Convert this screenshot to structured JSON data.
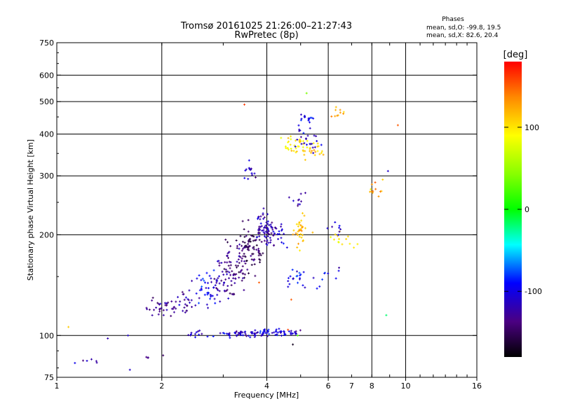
{
  "chart_data": {
    "type": "scatter",
    "title": "Tromsø 20161025 21:26:00–21:27:43",
    "subtitle": "RwPretec (8p)",
    "xlabel": "Frequency [MHz]",
    "ylabel": "Stationary phase Virtual Height [km]",
    "xscale": "log2",
    "yscale": "log",
    "xlim": [
      1,
      16
    ],
    "ylim": [
      75,
      750
    ],
    "xticks": [
      1,
      2,
      4,
      6,
      10,
      16
    ],
    "xtick_labels": [
      "1",
      "2",
      "4",
      "6",
      "10",
      "16"
    ],
    "xgrid": [
      2,
      4,
      6,
      8,
      10
    ],
    "xminor_labels": [
      {
        "x": 8,
        "label": "8"
      },
      {
        "x": 7,
        "label": "7"
      }
    ],
    "yticks": [
      75,
      100,
      200,
      300,
      400,
      500,
      600,
      750
    ],
    "ygrid": [
      100,
      200,
      300,
      400,
      500,
      600
    ],
    "grid": true,
    "stats": {
      "heading": "Phases",
      "line1": "mean, sd,O: -99.8, 19.5",
      "line2": "mean, sd,X:  82.6, 20.4"
    },
    "colorbar": {
      "label": "[deg]",
      "range": [
        -180,
        180
      ],
      "ticks": [
        100,
        0,
        -100
      ],
      "tick_labels": [
        "100",
        "0",
        "-100"
      ]
    },
    "clusters": [
      {
        "cx": 4.1,
        "cy": 102,
        "sx": 0.12,
        "sy": 0.012,
        "n": 60,
        "phase": -105
      },
      {
        "cx": 3.4,
        "cy": 101,
        "sx": 0.08,
        "sy": 0.012,
        "n": 40,
        "phase": -108
      },
      {
        "cx": 2.6,
        "cy": 101,
        "sx": 0.05,
        "sy": 0.012,
        "n": 14,
        "phase": -110
      },
      {
        "cx": 2.0,
        "cy": 120,
        "sx": 0.04,
        "sy": 0.03,
        "n": 30,
        "phase": -130
      },
      {
        "cx": 2.3,
        "cy": 126,
        "sx": 0.05,
        "sy": 0.04,
        "n": 30,
        "phase": -125
      },
      {
        "cx": 2.7,
        "cy": 135,
        "sx": 0.05,
        "sy": 0.06,
        "n": 40,
        "phase": -100
      },
      {
        "cx": 3.0,
        "cy": 145,
        "sx": 0.05,
        "sy": 0.07,
        "n": 45,
        "phase": -125
      },
      {
        "cx": 3.3,
        "cy": 165,
        "sx": 0.05,
        "sy": 0.09,
        "n": 70,
        "phase": -140
      },
      {
        "cx": 3.6,
        "cy": 185,
        "sx": 0.04,
        "sy": 0.08,
        "n": 70,
        "phase": -145
      },
      {
        "cx": 4.0,
        "cy": 205,
        "sx": 0.04,
        "sy": 0.06,
        "n": 60,
        "phase": -120
      },
      {
        "cx": 4.3,
        "cy": 200,
        "sx": 0.04,
        "sy": 0.04,
        "n": 25,
        "phase": -110
      },
      {
        "cx": 3.55,
        "cy": 310,
        "sx": 0.02,
        "sy": 0.025,
        "n": 14,
        "phase": -110
      },
      {
        "cx": 5.0,
        "cy": 205,
        "sx": 0.04,
        "sy": 0.06,
        "n": 35,
        "phase": 115
      },
      {
        "cx": 5.0,
        "cy": 148,
        "sx": 0.04,
        "sy": 0.03,
        "n": 20,
        "phase": -95
      },
      {
        "cx": 4.8,
        "cy": 370,
        "sx": 0.04,
        "sy": 0.03,
        "n": 30,
        "phase": 100
      },
      {
        "cx": 5.5,
        "cy": 360,
        "sx": 0.04,
        "sy": 0.03,
        "n": 25,
        "phase": 105
      },
      {
        "cx": 5.2,
        "cy": 380,
        "sx": 0.05,
        "sy": 0.06,
        "n": 25,
        "phase": -115
      },
      {
        "cx": 5.2,
        "cy": 445,
        "sx": 0.02,
        "sy": 0.02,
        "n": 15,
        "phase": -105
      },
      {
        "cx": 5.0,
        "cy": 255,
        "sx": 0.03,
        "sy": 0.03,
        "n": 10,
        "phase": -120
      },
      {
        "cx": 6.5,
        "cy": 190,
        "sx": 0.04,
        "sy": 0.04,
        "n": 14,
        "phase": 100
      },
      {
        "cx": 6.3,
        "cy": 210,
        "sx": 0.04,
        "sy": 0.04,
        "n": 8,
        "phase": -110
      },
      {
        "cx": 6.5,
        "cy": 455,
        "sx": 0.04,
        "sy": 0.02,
        "n": 10,
        "phase": 120
      },
      {
        "cx": 8.3,
        "cy": 275,
        "sx": 0.04,
        "sy": 0.03,
        "n": 12,
        "phase": 130
      },
      {
        "cx": 1.25,
        "cy": 84,
        "sx": 0.06,
        "sy": 0.01,
        "n": 6,
        "phase": -115
      },
      {
        "cx": 1.9,
        "cy": 86,
        "sx": 0.04,
        "sy": 0.01,
        "n": 4,
        "phase": -125
      },
      {
        "cx": 5.9,
        "cy": 150,
        "sx": 0.05,
        "sy": 0.04,
        "n": 10,
        "phase": -100
      }
    ],
    "points": [
      {
        "x": 5.2,
        "y": 530,
        "phase": 40
      },
      {
        "x": 3.45,
        "y": 490,
        "phase": 160
      },
      {
        "x": 9.5,
        "y": 425,
        "phase": 150
      },
      {
        "x": 8.9,
        "y": 310,
        "phase": -110
      },
      {
        "x": 8.8,
        "y": 115,
        "phase": -20
      },
      {
        "x": 1.08,
        "y": 106,
        "phase": 110
      },
      {
        "x": 1.6,
        "y": 100,
        "phase": -110
      },
      {
        "x": 1.4,
        "y": 98,
        "phase": -120
      },
      {
        "x": 1.62,
        "y": 79,
        "phase": -110
      },
      {
        "x": 4.9,
        "y": 100,
        "phase": 30
      },
      {
        "x": 4.6,
        "y": 104,
        "phase": 160
      },
      {
        "x": 4.75,
        "y": 94,
        "phase": -170
      },
      {
        "x": 3.8,
        "y": 144,
        "phase": 150
      },
      {
        "x": 4.7,
        "y": 128,
        "phase": 150
      }
    ]
  }
}
